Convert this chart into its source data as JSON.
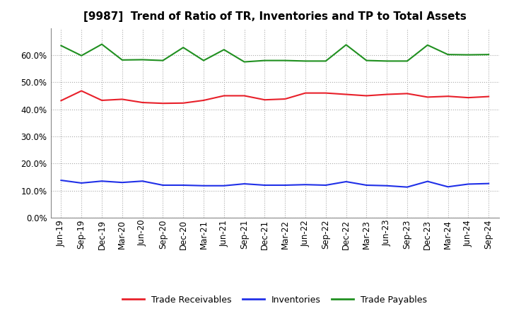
{
  "title": "[9987]  Trend of Ratio of TR, Inventories and TP to Total Assets",
  "x_labels": [
    "Jun-19",
    "Sep-19",
    "Dec-19",
    "Mar-20",
    "Jun-20",
    "Sep-20",
    "Dec-20",
    "Mar-21",
    "Jun-21",
    "Sep-21",
    "Dec-21",
    "Mar-22",
    "Jun-22",
    "Sep-22",
    "Dec-22",
    "Mar-23",
    "Jun-23",
    "Sep-23",
    "Dec-23",
    "Mar-24",
    "Jun-24",
    "Sep-24"
  ],
  "trade_receivables": [
    0.432,
    0.468,
    0.433,
    0.437,
    0.425,
    0.422,
    0.423,
    0.433,
    0.45,
    0.45,
    0.435,
    0.438,
    0.46,
    0.46,
    0.455,
    0.45,
    0.455,
    0.458,
    0.445,
    0.448,
    0.443,
    0.447
  ],
  "inventories": [
    0.138,
    0.128,
    0.135,
    0.13,
    0.135,
    0.12,
    0.12,
    0.118,
    0.118,
    0.125,
    0.12,
    0.12,
    0.122,
    0.12,
    0.133,
    0.12,
    0.118,
    0.113,
    0.134,
    0.114,
    0.124,
    0.126
  ],
  "trade_payables": [
    0.635,
    0.598,
    0.64,
    0.582,
    0.583,
    0.58,
    0.628,
    0.58,
    0.62,
    0.575,
    0.58,
    0.58,
    0.578,
    0.578,
    0.638,
    0.58,
    0.578,
    0.578,
    0.637,
    0.602,
    0.601,
    0.602
  ],
  "color_tr": "#e8202a",
  "color_inv": "#2030e8",
  "color_tp": "#209020",
  "bg_color": "#ffffff",
  "plot_bg_color": "#ffffff",
  "ylim": [
    0.0,
    0.7
  ],
  "yticks": [
    0.0,
    0.1,
    0.2,
    0.3,
    0.4,
    0.5,
    0.6
  ],
  "legend_labels": [
    "Trade Receivables",
    "Inventories",
    "Trade Payables"
  ],
  "linewidth": 1.5,
  "title_fontsize": 11,
  "tick_fontsize": 8.5,
  "legend_fontsize": 9
}
